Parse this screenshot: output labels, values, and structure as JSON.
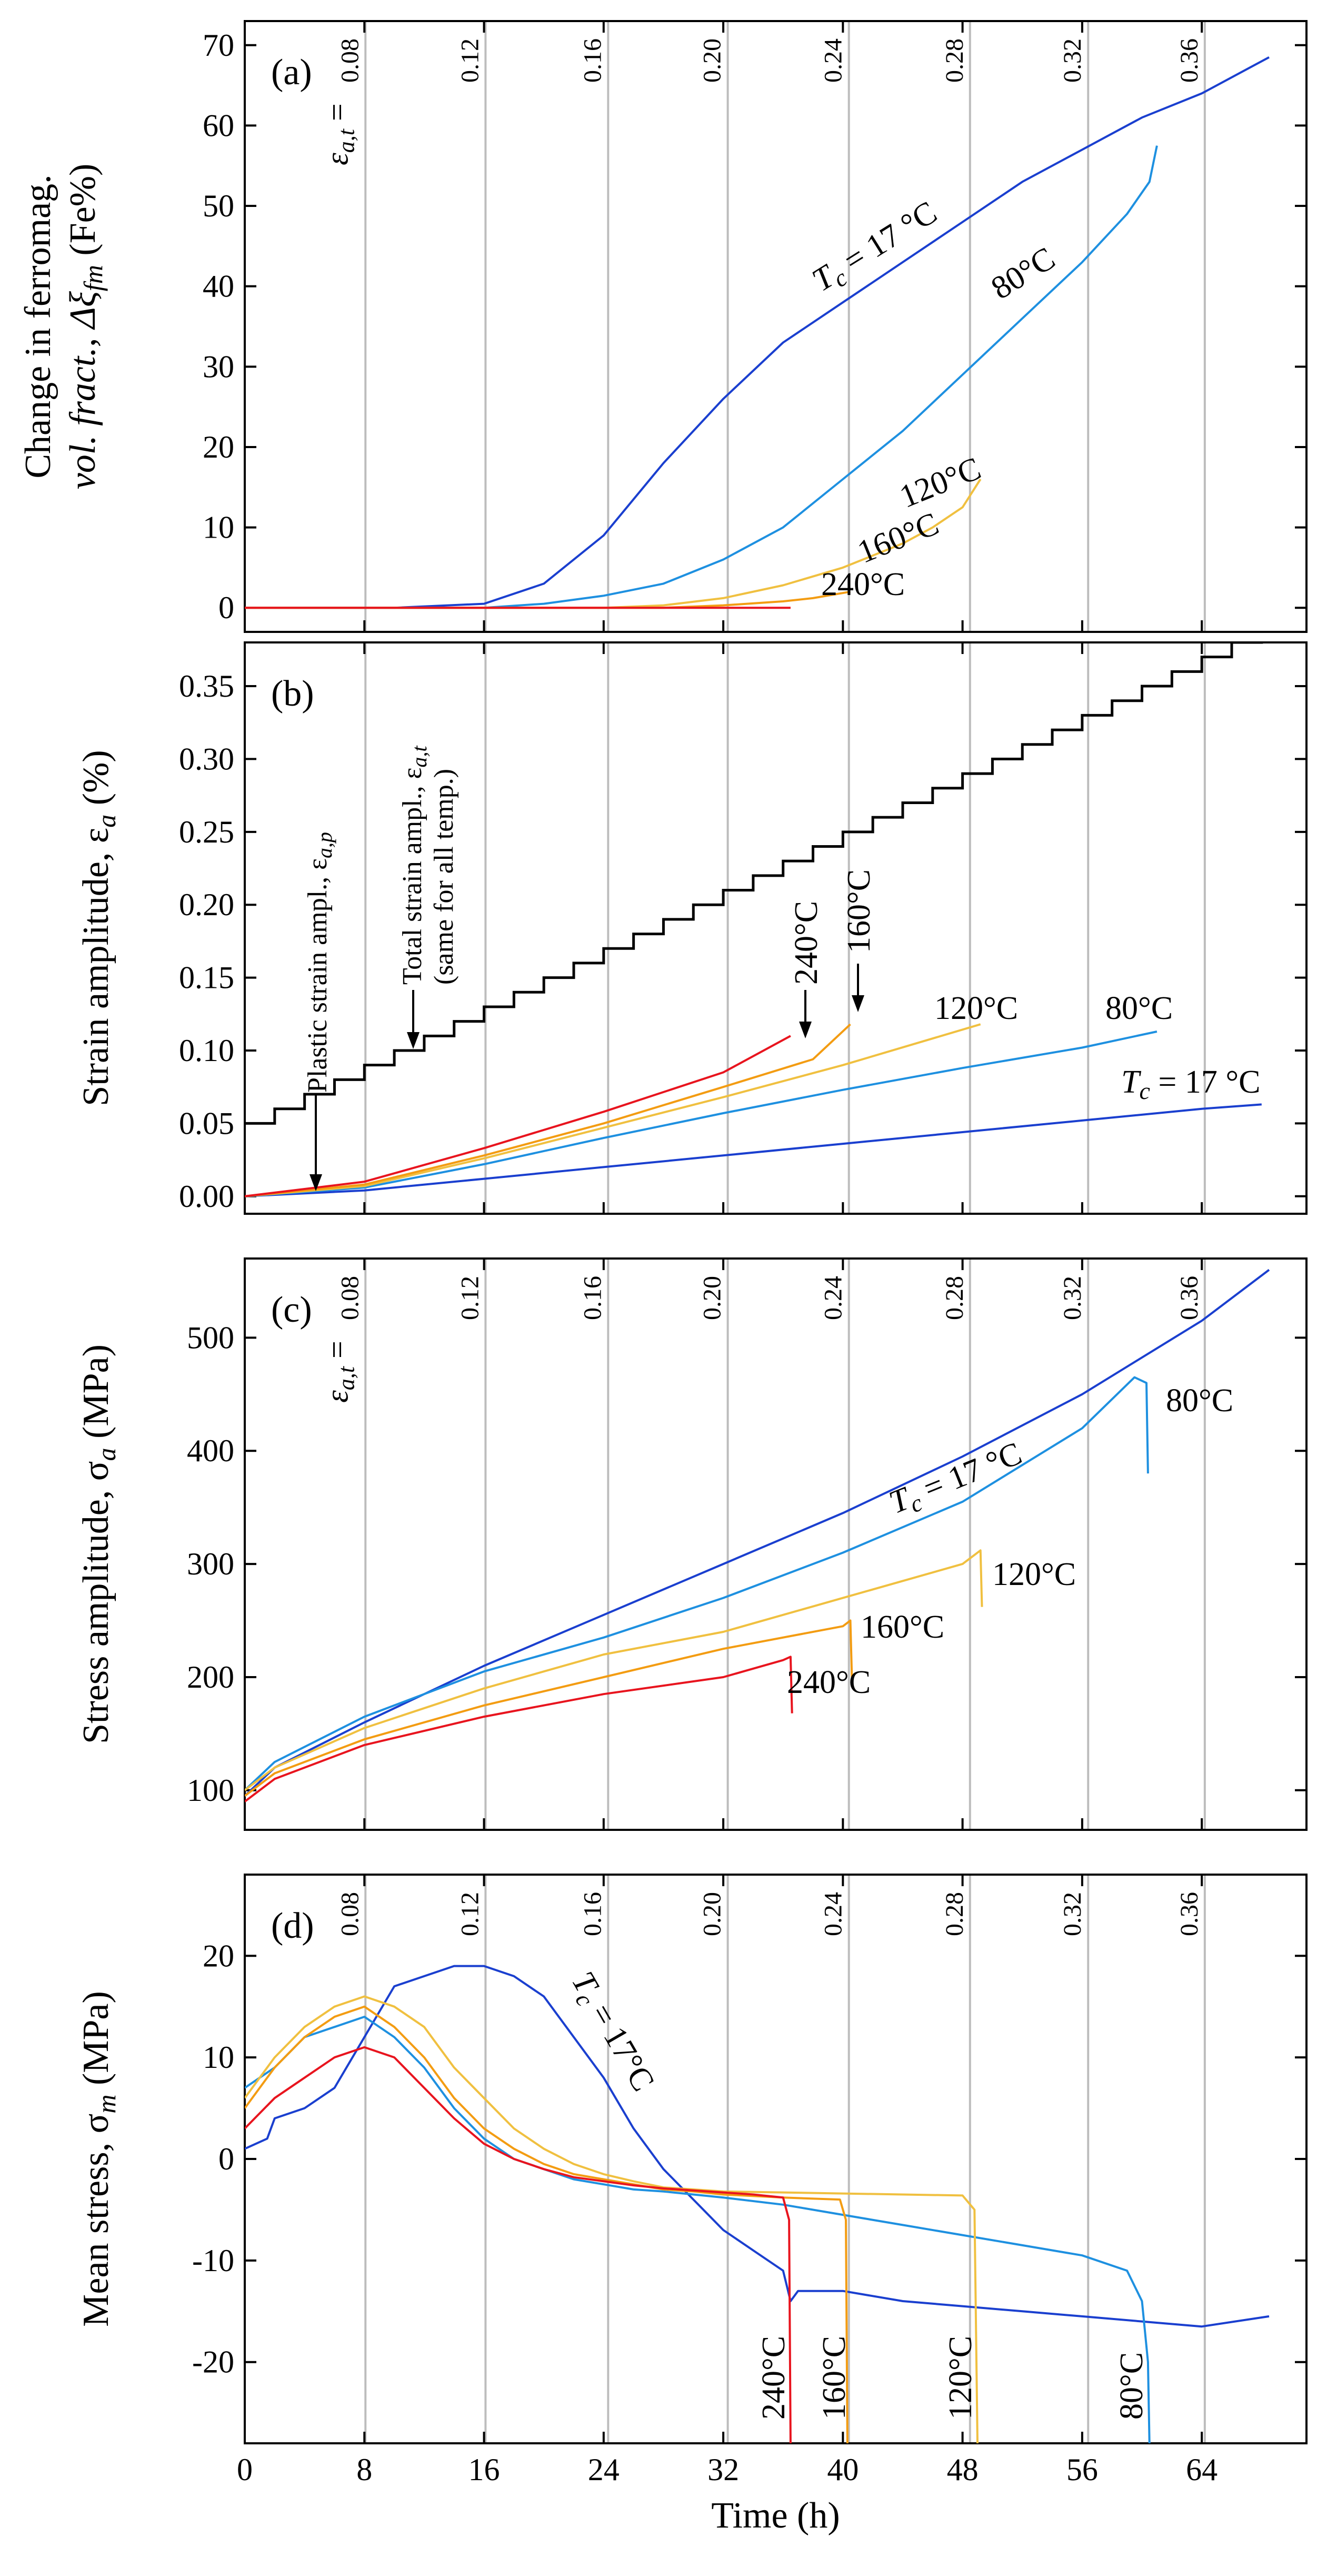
{
  "figure": {
    "x_axis": {
      "label": "Time (h)",
      "ticks": [
        0,
        8,
        16,
        24,
        32,
        40,
        48,
        56,
        64
      ],
      "xlim": [
        0,
        71
      ]
    },
    "strain_grid": {
      "label_prefix": "ε",
      "label_sub": "a,t",
      "label_eq": " = ",
      "positions_h": [
        8.07,
        16.1,
        24.3,
        32.3,
        40.4,
        48.5,
        56.4,
        64.2
      ],
      "labels": [
        "0.08",
        "0.12",
        "0.16",
        "0.20",
        "0.24",
        "0.28",
        "0.32",
        "0.36"
      ]
    },
    "colors": {
      "T17": "#1a3fcf",
      "T80": "#1e90e0",
      "T120": "#f0c040",
      "T160": "#f39c12",
      "T240": "#e8141e",
      "total": "#000000",
      "grid": "#bdbdbd"
    }
  },
  "chart_data": [
    {
      "type": "line",
      "panel": "(a)",
      "ylabel_line1": "Change in ferromag.",
      "ylabel_line2": "vol. fract., Δξ",
      "ylabel_sub": "fm",
      "ylabel_unit": " (Fe%)",
      "ylim": [
        -3,
        73
      ],
      "yticks": [
        0,
        10,
        20,
        30,
        40,
        50,
        60,
        70
      ],
      "labels": {
        "T17": "T",
        "T17_sub": "c",
        "T17_rest": " = 17 °C",
        "T80": "80°C",
        "T120": "120°C",
        "T160": "160°C",
        "T240": "240°C"
      },
      "series": [
        {
          "key": "T17",
          "x": [
            0,
            10,
            16,
            20,
            24,
            28,
            32,
            36,
            40,
            44,
            48,
            52,
            56,
            60,
            64,
            68.5
          ],
          "y": [
            0,
            0,
            0.5,
            3,
            9,
            18,
            26,
            33,
            38,
            43,
            48,
            53,
            57,
            61,
            64,
            68.5
          ]
        },
        {
          "key": "T80",
          "x": [
            0,
            16,
            20,
            24,
            28,
            32,
            36,
            40,
            44,
            48,
            52,
            56,
            59,
            60.5,
            61
          ],
          "y": [
            0,
            0,
            0.5,
            1.5,
            3,
            6,
            10,
            16,
            22,
            29,
            36,
            43,
            49,
            53,
            57.5
          ]
        },
        {
          "key": "T120",
          "x": [
            0,
            24,
            28,
            32,
            36,
            40,
            44,
            46,
            48,
            49.2
          ],
          "y": [
            0,
            0,
            0.3,
            1.2,
            2.8,
            5,
            8,
            10,
            12.5,
            16
          ]
        },
        {
          "key": "T160",
          "x": [
            0,
            28,
            32,
            36,
            38,
            40.5
          ],
          "y": [
            0,
            0,
            0.3,
            0.8,
            1.2,
            2
          ]
        },
        {
          "key": "T240",
          "x": [
            0,
            36.5
          ],
          "y": [
            0,
            0
          ]
        }
      ]
    },
    {
      "type": "line",
      "panel": "(b)",
      "ylabel": "Strain amplitude, ε",
      "ylabel_sub": "a",
      "ylabel_unit": " (%)",
      "ylim": [
        -0.012,
        0.38
      ],
      "yticks": [
        0,
        0.05,
        0.1,
        0.15,
        0.2,
        0.25,
        0.3,
        0.35
      ],
      "ytick_labels": [
        "0.00",
        "0.05",
        "0.10",
        "0.15",
        "0.20",
        "0.25",
        "0.30",
        "0.35"
      ],
      "annotations": {
        "plastic": "Plastic strain ampl., ε",
        "plastic_sub": "a,p",
        "total_1": "Total strain ampl., ε",
        "total_sub": "a,t",
        "total_2": "(same for all temp.)",
        "T240": "240°C",
        "T160": "160°C",
        "T120": "120°C",
        "T80": "80°C",
        "T17": "T",
        "T17_sub": "c",
        "T17_rest": " = 17 °C"
      },
      "total_strain": {
        "start": 0.05,
        "step": 0.01,
        "step_hours": 2,
        "end_h": 68
      },
      "series": [
        {
          "key": "T17",
          "x": [
            0,
            8,
            16,
            24,
            32,
            40,
            48,
            56,
            64,
            68
          ],
          "y": [
            0,
            0.004,
            0.012,
            0.02,
            0.028,
            0.036,
            0.044,
            0.052,
            0.06,
            0.063
          ]
        },
        {
          "key": "T80",
          "x": [
            0,
            8,
            16,
            24,
            32,
            40,
            48,
            56,
            61
          ],
          "y": [
            0,
            0.006,
            0.022,
            0.04,
            0.057,
            0.073,
            0.088,
            0.102,
            0.113
          ]
        },
        {
          "key": "T120",
          "x": [
            0,
            8,
            16,
            24,
            32,
            40,
            49.2
          ],
          "y": [
            0,
            0.007,
            0.026,
            0.047,
            0.068,
            0.09,
            0.118
          ]
        },
        {
          "key": "T160",
          "x": [
            0,
            8,
            16,
            24,
            32,
            38,
            40.5
          ],
          "y": [
            0,
            0.008,
            0.028,
            0.05,
            0.075,
            0.094,
            0.118
          ]
        },
        {
          "key": "T240",
          "x": [
            0,
            8,
            16,
            24,
            32,
            36.5
          ],
          "y": [
            0,
            0.01,
            0.033,
            0.058,
            0.085,
            0.11
          ]
        }
      ]
    },
    {
      "type": "line",
      "panel": "(c)",
      "ylabel": "Stress amplitude, σ",
      "ylabel_sub": "a",
      "ylabel_unit": " (MPa)",
      "ylim": [
        65,
        570
      ],
      "yticks": [
        100,
        200,
        300,
        400,
        500
      ],
      "labels": {
        "T17": "T",
        "T17_sub": "c",
        "T17_rest": " = 17 °C",
        "T80": "80°C",
        "T120": "120°C",
        "T160": "160°C",
        "T240": "240°C"
      },
      "series": [
        {
          "key": "T17",
          "x": [
            0,
            2,
            8,
            16,
            24,
            32,
            40,
            48,
            56,
            64,
            68.5
          ],
          "y": [
            95,
            120,
            160,
            210,
            255,
            300,
            345,
            395,
            450,
            515,
            560
          ]
        },
        {
          "key": "T80",
          "x": [
            0,
            2,
            8,
            16,
            24,
            32,
            40,
            48,
            56,
            59.5,
            60.3,
            60.4
          ],
          "y": [
            100,
            125,
            165,
            205,
            235,
            270,
            310,
            355,
            420,
            465,
            460,
            380
          ]
        },
        {
          "key": "T120",
          "x": [
            0,
            2,
            8,
            16,
            24,
            32,
            40,
            48,
            49.2,
            49.3
          ],
          "y": [
            100,
            120,
            155,
            190,
            220,
            240,
            270,
            300,
            312,
            262
          ]
        },
        {
          "key": "T160",
          "x": [
            0,
            2,
            8,
            16,
            24,
            32,
            40,
            40.5,
            40.6
          ],
          "y": [
            95,
            115,
            145,
            175,
            200,
            225,
            245,
            250,
            200
          ]
        },
        {
          "key": "T240",
          "x": [
            0,
            2,
            8,
            16,
            24,
            32,
            36,
            36.5,
            36.6
          ],
          "y": [
            90,
            110,
            140,
            165,
            185,
            200,
            215,
            218,
            168
          ]
        }
      ]
    },
    {
      "type": "line",
      "panel": "(d)",
      "ylabel": "Mean stress, σ",
      "ylabel_sub": "m",
      "ylabel_unit": " (MPa)",
      "ylim": [
        -28,
        28
      ],
      "yticks": [
        -20,
        -10,
        0,
        10,
        20
      ],
      "labels": {
        "T17": "T",
        "T17_sub": "c",
        "T17_rest": " = 17°C",
        "T80": "80°C",
        "T120": "120°C",
        "T160": "160°C",
        "T240": "240°C"
      },
      "series": [
        {
          "key": "T17",
          "x": [
            0,
            1.5,
            2,
            4,
            6,
            8,
            10,
            12,
            14,
            16,
            18,
            20,
            22,
            24,
            26,
            28,
            30,
            32,
            34,
            36,
            36.5,
            37,
            40,
            44,
            48,
            52,
            56,
            60,
            64,
            68.5
          ],
          "y": [
            1,
            2,
            4,
            5,
            7,
            12,
            17,
            18,
            19,
            19,
            18,
            16,
            12,
            8,
            3,
            -1,
            -4,
            -7,
            -9,
            -11,
            -14,
            -13,
            -13,
            -14,
            -14.5,
            -15,
            -15.5,
            -16,
            -16.5,
            -15.5
          ]
        },
        {
          "key": "T80",
          "x": [
            0,
            2,
            4,
            6,
            8,
            10,
            12,
            14,
            16,
            18,
            20,
            22,
            24,
            26,
            28,
            30,
            32,
            36,
            40,
            44,
            48,
            52,
            56,
            59,
            60,
            60.4,
            60.5
          ],
          "y": [
            7,
            9,
            12,
            13,
            14,
            12,
            9,
            5,
            2,
            0,
            -1,
            -2,
            -2.5,
            -3,
            -3.2,
            -3.5,
            -3.8,
            -4.5,
            -5.5,
            -6.5,
            -7.5,
            -8.5,
            -9.5,
            -11,
            -14,
            -20,
            -28
          ]
        },
        {
          "key": "T120",
          "x": [
            0,
            2,
            4,
            6,
            8,
            10,
            12,
            14,
            16,
            18,
            20,
            22,
            24,
            26,
            28,
            30,
            32,
            36,
            40,
            44,
            48,
            48.8,
            49
          ],
          "y": [
            6,
            10,
            13,
            15,
            16,
            15,
            13,
            9,
            6,
            3,
            1,
            -0.5,
            -1.5,
            -2.2,
            -2.8,
            -3,
            -3.2,
            -3.3,
            -3.4,
            -3.5,
            -3.6,
            -5,
            -28
          ]
        },
        {
          "key": "T160",
          "x": [
            0,
            2,
            4,
            6,
            8,
            10,
            12,
            14,
            16,
            18,
            20,
            22,
            24,
            26,
            28,
            30,
            32,
            36,
            39.8,
            40.2,
            40.3
          ],
          "y": [
            5,
            9,
            12,
            14,
            15,
            13,
            10,
            6,
            3,
            1,
            -0.5,
            -1.5,
            -2,
            -2.5,
            -3,
            -3.2,
            -3.5,
            -3.8,
            -4,
            -6,
            -28
          ]
        },
        {
          "key": "T240",
          "x": [
            0,
            2,
            4,
            6,
            8,
            10,
            12,
            14,
            16,
            18,
            20,
            22,
            24,
            26,
            28,
            30,
            32,
            34,
            36,
            36.4,
            36.5
          ],
          "y": [
            3,
            6,
            8,
            10,
            11,
            10,
            7,
            4,
            1.5,
            0,
            -1,
            -1.8,
            -2.2,
            -2.6,
            -2.9,
            -3.1,
            -3.3,
            -3.5,
            -3.8,
            -6,
            -28
          ]
        }
      ]
    }
  ]
}
